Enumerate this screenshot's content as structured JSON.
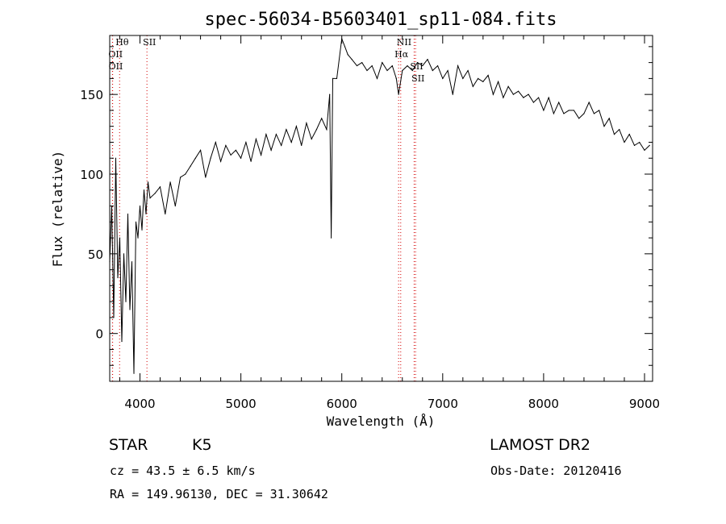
{
  "chart_data": {
    "type": "line",
    "title": "spec-56034-B5603401_sp11-084.fits",
    "xlabel": "Wavelength (Å)",
    "ylabel": "Flux (relative)",
    "xlim": [
      3700,
      9080
    ],
    "ylim": [
      -30,
      187
    ],
    "xticks": [
      4000,
      5000,
      6000,
      7000,
      8000,
      9000
    ],
    "yticks": [
      0,
      50,
      100,
      150
    ],
    "grid": false,
    "series": [
      {
        "color": "#000000",
        "x": [
          3700,
          3720,
          3740,
          3760,
          3780,
          3800,
          3820,
          3840,
          3860,
          3880,
          3900,
          3920,
          3940,
          3960,
          3980,
          4000,
          4020,
          4040,
          4060,
          4080,
          4100,
          4150,
          4200,
          4250,
          4300,
          4350,
          4400,
          4450,
          4500,
          4550,
          4600,
          4650,
          4700,
          4750,
          4800,
          4850,
          4900,
          4950,
          5000,
          5050,
          5100,
          5150,
          5200,
          5250,
          5300,
          5350,
          5400,
          5450,
          5500,
          5550,
          5600,
          5650,
          5700,
          5750,
          5800,
          5850,
          5880,
          5895,
          5910,
          5950,
          6000,
          6030,
          6060,
          6100,
          6150,
          6200,
          6250,
          6300,
          6350,
          6400,
          6450,
          6500,
          6540,
          6563,
          6600,
          6650,
          6700,
          6750,
          6800,
          6850,
          6900,
          6950,
          7000,
          7050,
          7100,
          7150,
          7200,
          7250,
          7300,
          7350,
          7400,
          7450,
          7500,
          7550,
          7600,
          7650,
          7700,
          7750,
          7800,
          7850,
          7900,
          7950,
          8000,
          8050,
          8100,
          8150,
          8200,
          8250,
          8300,
          8350,
          8400,
          8450,
          8500,
          8550,
          8600,
          8650,
          8700,
          8750,
          8800,
          8850,
          8900,
          8950,
          9000,
          9050
        ],
        "values": [
          45,
          80,
          10,
          110,
          35,
          60,
          -5,
          50,
          20,
          75,
          15,
          45,
          -25,
          70,
          60,
          80,
          65,
          90,
          75,
          95,
          85,
          88,
          92,
          75,
          95,
          80,
          98,
          100,
          105,
          110,
          115,
          98,
          110,
          120,
          108,
          118,
          112,
          115,
          110,
          120,
          108,
          122,
          112,
          125,
          115,
          125,
          118,
          128,
          120,
          130,
          118,
          132,
          122,
          128,
          135,
          128,
          150,
          60,
          160,
          160,
          185,
          180,
          175,
          172,
          168,
          170,
          165,
          168,
          160,
          170,
          165,
          168,
          160,
          150,
          165,
          168,
          165,
          170,
          168,
          172,
          165,
          168,
          160,
          165,
          150,
          168,
          160,
          165,
          155,
          160,
          158,
          162,
          150,
          158,
          148,
          155,
          150,
          152,
          148,
          150,
          145,
          148,
          140,
          148,
          138,
          145,
          138,
          140,
          140,
          135,
          138,
          145,
          138,
          140,
          130,
          135,
          125,
          128,
          120,
          125,
          118,
          120,
          115,
          118
        ]
      }
    ],
    "lines": [
      {
        "label": "Hθ",
        "x": 3798
      },
      {
        "label": "OII",
        "x": 3727
      },
      {
        "label": "OII",
        "x": 3729
      },
      {
        "label": "SII",
        "x": 4069
      },
      {
        "label": "NII",
        "x": 6584
      },
      {
        "label": "Hα",
        "x": 6563
      },
      {
        "label": "SII",
        "x": 6717
      },
      {
        "label": "SII",
        "x": 6731
      }
    ]
  },
  "info": {
    "class": "STAR",
    "subclass": "K5",
    "survey": "LAMOST DR2",
    "cz": "cz = 43.5 ± 6.5 km/s",
    "obs_date": "Obs-Date: 20120416",
    "coords": "RA = 149.96130, DEC =  31.30642"
  }
}
